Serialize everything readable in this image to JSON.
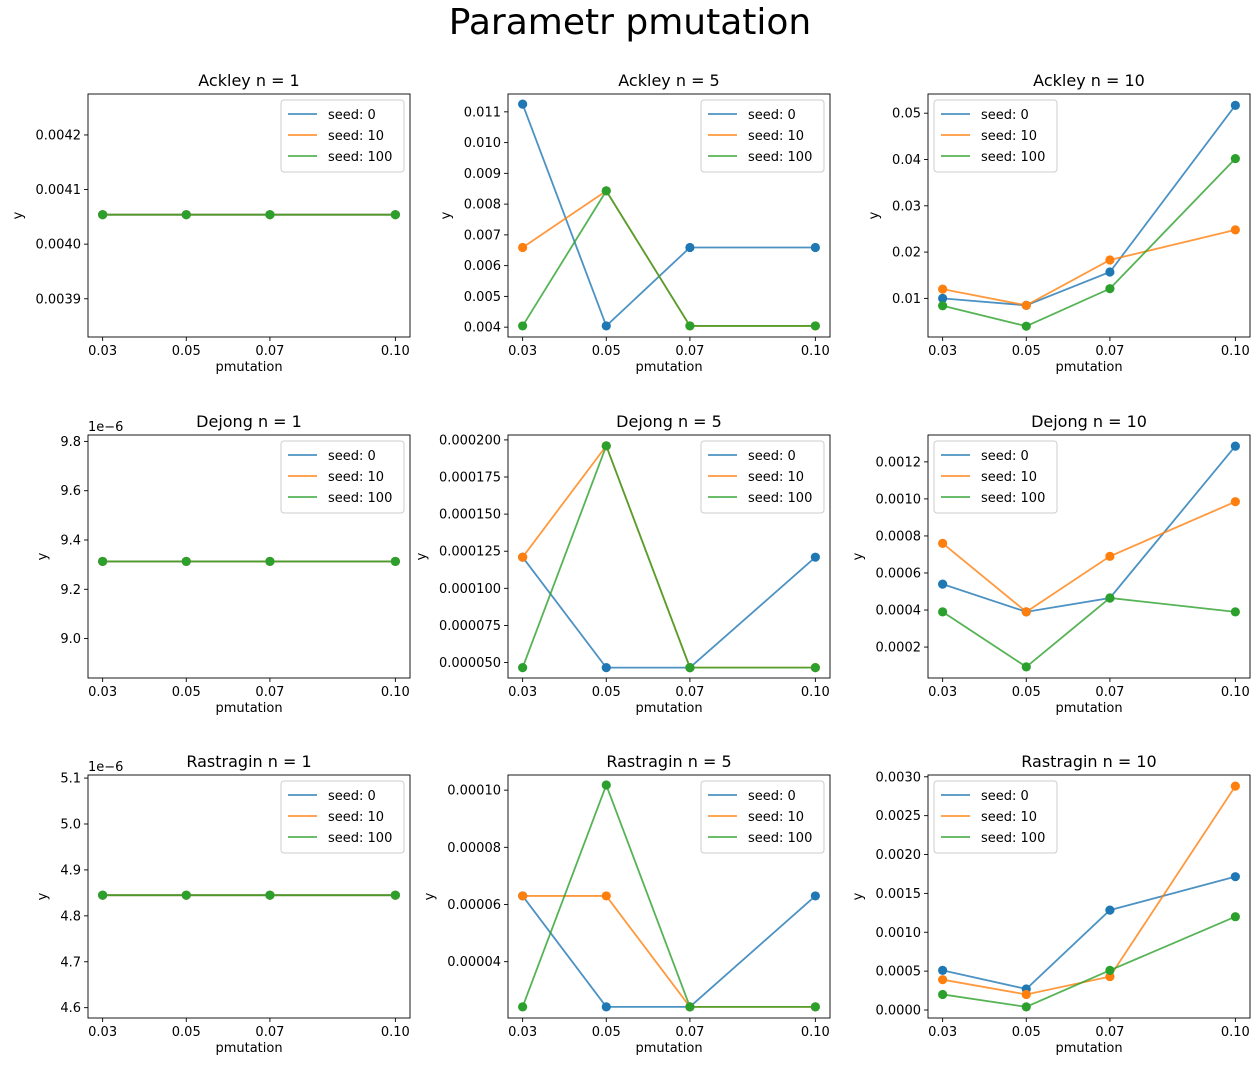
{
  "figure": {
    "suptitle": "Parametr pmutation"
  },
  "colors": {
    "seed_0": "#1f77b4",
    "seed_10": "#ff7f0e",
    "seed_100": "#2ca02c"
  },
  "chart_data": [
    {
      "type": "line",
      "title": "Ackley n = 1",
      "xlabel": "pmutation",
      "ylabel": "y",
      "x": [
        0.03,
        0.05,
        0.07,
        0.1
      ],
      "xticks": [
        "0.03",
        "0.05",
        "0.07",
        "0.10"
      ],
      "yticks": [
        "0.0039",
        "0.0040",
        "0.0041",
        "0.0042"
      ],
      "ytick_values": [
        0.0039,
        0.004,
        0.0041,
        0.0042
      ],
      "ylim": [
        0.00383,
        0.004275
      ],
      "offset_text": "",
      "legend_loc": "upper right",
      "series": [
        {
          "name": "seed: 0",
          "values": [
            0.004054,
            0.004054,
            0.004054,
            0.004054
          ]
        },
        {
          "name": "seed: 10",
          "values": [
            0.004054,
            0.004054,
            0.004054,
            0.004054
          ]
        },
        {
          "name": "seed: 100",
          "values": [
            0.004054,
            0.004054,
            0.004054,
            0.004054
          ]
        }
      ]
    },
    {
      "type": "line",
      "title": "Ackley n = 5",
      "xlabel": "pmutation",
      "ylabel": "y",
      "x": [
        0.03,
        0.05,
        0.07,
        0.1
      ],
      "xticks": [
        "0.03",
        "0.05",
        "0.07",
        "0.10"
      ],
      "yticks": [
        "0.004",
        "0.005",
        "0.006",
        "0.007",
        "0.008",
        "0.009",
        "0.010",
        "0.011"
      ],
      "ytick_values": [
        0.004,
        0.005,
        0.006,
        0.007,
        0.008,
        0.009,
        0.01,
        0.011
      ],
      "ylim": [
        0.00368,
        0.01158
      ],
      "offset_text": "",
      "legend_loc": "upper right",
      "series": [
        {
          "name": "seed: 0",
          "values": [
            0.01125,
            0.00404,
            0.00659,
            0.00659
          ]
        },
        {
          "name": "seed: 10",
          "values": [
            0.00659,
            0.00843,
            0.00404,
            0.00404
          ]
        },
        {
          "name": "seed: 100",
          "values": [
            0.00404,
            0.00843,
            0.00404,
            0.00404
          ]
        }
      ]
    },
    {
      "type": "line",
      "title": "Ackley n = 10",
      "xlabel": "pmutation",
      "ylabel": "y",
      "x": [
        0.03,
        0.05,
        0.07,
        0.1
      ],
      "xticks": [
        "0.03",
        "0.05",
        "0.07",
        "0.10"
      ],
      "yticks": [
        "0.01",
        "0.02",
        "0.03",
        "0.04",
        "0.05"
      ],
      "ytick_values": [
        0.01,
        0.02,
        0.03,
        0.04,
        0.05
      ],
      "ylim": [
        0.00166,
        0.05415
      ],
      "offset_text": "",
      "legend_loc": "upper left",
      "series": [
        {
          "name": "seed: 0",
          "values": [
            0.01,
            0.0085,
            0.0157,
            0.0517
          ]
        },
        {
          "name": "seed: 10",
          "values": [
            0.012,
            0.0085,
            0.0183,
            0.0248
          ]
        },
        {
          "name": "seed: 100",
          "values": [
            0.0084,
            0.004,
            0.0121,
            0.0402
          ]
        }
      ]
    },
    {
      "type": "line",
      "title": "Dejong n = 1",
      "xlabel": "pmutation",
      "ylabel": "y",
      "x": [
        0.03,
        0.05,
        0.07,
        0.1
      ],
      "xticks": [
        "0.03",
        "0.05",
        "0.07",
        "0.10"
      ],
      "yticks": [
        "9.0",
        "9.2",
        "9.4",
        "9.6",
        "9.8"
      ],
      "ytick_values": [
        9.0,
        9.2,
        9.4,
        9.6,
        9.8
      ],
      "ylim": [
        8.84,
        9.826
      ],
      "offset_text": "1e−6",
      "legend_loc": "upper right",
      "series": [
        {
          "name": "seed: 0",
          "values": [
            9.313,
            9.313,
            9.313,
            9.313
          ]
        },
        {
          "name": "seed: 10",
          "values": [
            9.313,
            9.313,
            9.313,
            9.313
          ]
        },
        {
          "name": "seed: 100",
          "values": [
            9.313,
            9.313,
            9.313,
            9.313
          ]
        }
      ]
    },
    {
      "type": "line",
      "title": "Dejong n = 5",
      "xlabel": "pmutation",
      "ylabel": "y",
      "x": [
        0.03,
        0.05,
        0.07,
        0.1
      ],
      "xticks": [
        "0.03",
        "0.05",
        "0.07",
        "0.10"
      ],
      "yticks": [
        "0.000050",
        "0.000075",
        "0.000100",
        "0.000125",
        "0.000150",
        "0.000175",
        "0.000200"
      ],
      "ytick_values": [
        5e-05,
        7.5e-05,
        0.0001,
        0.000125,
        0.00015,
        0.000175,
        0.0002
      ],
      "ylim": [
        3.96e-05,
        0.0002033
      ],
      "offset_text": "",
      "legend_loc": "upper right",
      "series": [
        {
          "name": "seed: 0",
          "values": [
            0.000121,
            4.66e-05,
            4.66e-05,
            0.000121
          ]
        },
        {
          "name": "seed: 10",
          "values": [
            0.000121,
            0.000196,
            4.66e-05,
            4.66e-05
          ]
        },
        {
          "name": "seed: 100",
          "values": [
            4.66e-05,
            0.000196,
            4.66e-05,
            4.66e-05
          ]
        }
      ]
    },
    {
      "type": "line",
      "title": "Dejong n = 10",
      "xlabel": "pmutation",
      "ylabel": "y",
      "x": [
        0.03,
        0.05,
        0.07,
        0.1
      ],
      "xticks": [
        "0.03",
        "0.05",
        "0.07",
        "0.10"
      ],
      "yticks": [
        "0.0002",
        "0.0004",
        "0.0006",
        "0.0008",
        "0.0010",
        "0.0012"
      ],
      "ytick_values": [
        0.0002,
        0.0004,
        0.0006,
        0.0008,
        0.001,
        0.0012
      ],
      "ylim": [
        3.3e-05,
        0.001345
      ],
      "offset_text": "",
      "legend_loc": "upper left",
      "series": [
        {
          "name": "seed: 0",
          "values": [
            0.00054,
            0.00039,
            0.000465,
            0.001285
          ]
        },
        {
          "name": "seed: 10",
          "values": [
            0.00076,
            0.00039,
            0.00069,
            0.000985
          ]
        },
        {
          "name": "seed: 100",
          "values": [
            0.00039,
            9.3e-05,
            0.000465,
            0.00039
          ]
        }
      ]
    },
    {
      "type": "line",
      "title": "Rastragin n = 1",
      "xlabel": "pmutation",
      "ylabel": "y",
      "x": [
        0.03,
        0.05,
        0.07,
        0.1
      ],
      "xticks": [
        "0.03",
        "0.05",
        "0.07",
        "0.10"
      ],
      "yticks": [
        "4.6",
        "4.7",
        "4.8",
        "4.9",
        "5.0",
        "5.1"
      ],
      "ytick_values": [
        4.6,
        4.7,
        4.8,
        4.9,
        5.0,
        5.1
      ],
      "ylim": [
        4.5775,
        5.1067
      ],
      "offset_text": "1e−6",
      "legend_loc": "upper right",
      "series": [
        {
          "name": "seed: 0",
          "values": [
            4.845,
            4.845,
            4.845,
            4.845
          ]
        },
        {
          "name": "seed: 10",
          "values": [
            4.845,
            4.845,
            4.845,
            4.845
          ]
        },
        {
          "name": "seed: 100",
          "values": [
            4.845,
            4.845,
            4.845,
            4.845
          ]
        }
      ]
    },
    {
      "type": "line",
      "title": "Rastragin n = 5",
      "xlabel": "pmutation",
      "ylabel": "y",
      "x": [
        0.03,
        0.05,
        0.07,
        0.1
      ],
      "xticks": [
        "0.03",
        "0.05",
        "0.07",
        "0.10"
      ],
      "yticks": [
        "0.00004",
        "0.00006",
        "0.00008",
        "0.00010"
      ],
      "ytick_values": [
        4e-05,
        6e-05,
        8e-05,
        0.0001
      ],
      "ylim": [
        2.03e-05,
        0.0001053
      ],
      "offset_text": "",
      "legend_loc": "upper right",
      "series": [
        {
          "name": "seed: 0",
          "values": [
            6.3e-05,
            2.42e-05,
            2.42e-05,
            6.3e-05
          ]
        },
        {
          "name": "seed: 10",
          "values": [
            6.3e-05,
            6.3e-05,
            2.42e-05,
            2.42e-05
          ]
        },
        {
          "name": "seed: 100",
          "values": [
            2.42e-05,
            0.0001018,
            2.42e-05,
            2.42e-05
          ]
        }
      ]
    },
    {
      "type": "line",
      "title": "Rastragin n = 10",
      "xlabel": "pmutation",
      "ylabel": "y",
      "x": [
        0.03,
        0.05,
        0.07,
        0.1
      ],
      "xticks": [
        "0.03",
        "0.05",
        "0.07",
        "0.10"
      ],
      "yticks": [
        "0.0000",
        "0.0005",
        "0.0010",
        "0.0015",
        "0.0020",
        "0.0025",
        "0.0030"
      ],
      "ytick_values": [
        0.0,
        0.0005,
        0.001,
        0.0015,
        0.002,
        0.0025,
        0.003
      ],
      "ylim": [
        -0.000103,
        0.003023
      ],
      "offset_text": "",
      "legend_loc": "upper left",
      "series": [
        {
          "name": "seed: 0",
          "values": [
            0.00051,
            0.00027,
            0.001285,
            0.001715
          ]
        },
        {
          "name": "seed: 10",
          "values": [
            0.00039,
            0.0002,
            0.00043,
            0.00288
          ]
        },
        {
          "name": "seed: 100",
          "values": [
            0.0002,
            4e-05,
            0.00051,
            0.0012
          ]
        }
      ]
    }
  ]
}
